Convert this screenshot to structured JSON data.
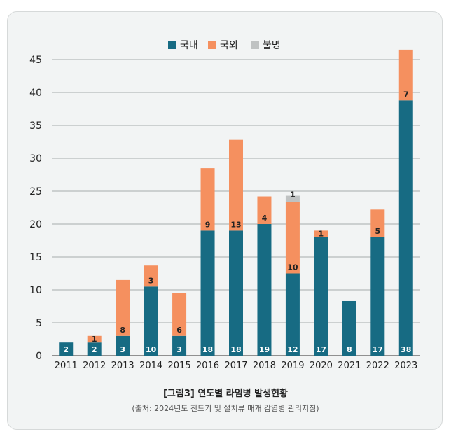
{
  "chart_data": {
    "type": "bar",
    "stacked": true,
    "categories": [
      "2011",
      "2012",
      "2013",
      "2014",
      "2015",
      "2016",
      "2017",
      "2018",
      "2019",
      "2020",
      "2021",
      "2022",
      "2023"
    ],
    "series": [
      {
        "name": "국내",
        "color": "#176b83",
        "values": [
          2,
          2,
          3,
          10,
          3,
          18,
          18,
          19,
          12,
          17,
          8,
          17,
          38
        ]
      },
      {
        "name": "국외",
        "color": "#f5905f",
        "values": [
          0,
          1,
          8,
          3,
          6,
          9,
          13,
          4,
          10,
          1,
          0,
          5,
          7
        ]
      },
      {
        "name": "불명",
        "color": "#bfc2c2",
        "values": [
          0,
          0,
          0,
          0,
          0,
          0,
          0,
          0,
          1,
          0,
          0,
          0,
          0
        ]
      }
    ],
    "heights": {
      "국내": [
        2,
        2,
        3,
        10.5,
        3,
        19,
        19,
        20,
        12.5,
        18,
        8.3,
        18,
        38.8
      ],
      "국외": [
        0,
        1,
        8.5,
        3.2,
        6.5,
        9.5,
        13.8,
        4.2,
        10.8,
        1,
        0,
        4.2,
        7.7
      ],
      "불명": [
        0,
        0,
        0,
        0,
        0,
        0,
        0,
        0,
        1,
        0,
        0,
        0,
        0
      ]
    },
    "ylim": [
      0,
      45
    ],
    "yticks": [
      0,
      5,
      10,
      15,
      20,
      25,
      30,
      35,
      40,
      45
    ],
    "grid": true,
    "legend_position": "top-center",
    "title": "[그림3] 연도별 라임병 발생현황",
    "subtitle": "(출처: 2024년도 진드기 및 설치류 매개 감염병 관리지침)"
  },
  "caption": {
    "title": "[그림3] 연도별 라임병 발생현황",
    "source": "(출처: 2024년도 진드기 및 설치류 매개 감염병 관리지침)"
  }
}
